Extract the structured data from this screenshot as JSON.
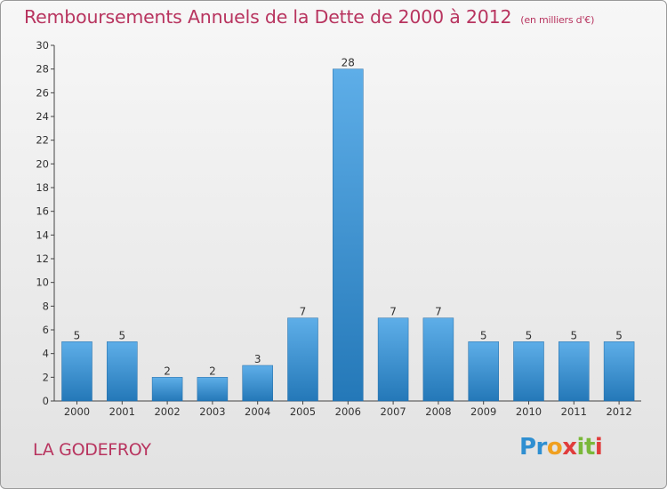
{
  "header": {
    "title": "Remboursements Annuels de la Dette de 2000 à 2012",
    "subtitle": "(en milliers d'€)"
  },
  "footer": {
    "commune": "LA GODEFROY",
    "brand": "Proxiti",
    "brand_colors": [
      "#2f8fd1",
      "#f0a020",
      "#7ab83a",
      "#e03c3c"
    ]
  },
  "colors": {
    "bar_light": "#5eaee8",
    "bar_dark": "#2478b8",
    "title": "#b8345f",
    "axis": "#444444"
  },
  "chart_data": {
    "type": "bar",
    "title": "Remboursements Annuels de la Dette de 2000 à 2012",
    "subtitle": "(en milliers d'€)",
    "categories": [
      "2000",
      "2001",
      "2002",
      "2003",
      "2004",
      "2005",
      "2006",
      "2007",
      "2008",
      "2009",
      "2010",
      "2011",
      "2012"
    ],
    "values": [
      5,
      5,
      2,
      2,
      3,
      7,
      28,
      7,
      7,
      5,
      5,
      5,
      5
    ],
    "ylim": [
      0,
      30
    ],
    "yticks": [
      0,
      2,
      4,
      6,
      8,
      10,
      12,
      14,
      16,
      18,
      20,
      22,
      24,
      26,
      28,
      30
    ],
    "grid": false,
    "data_labels": true
  }
}
